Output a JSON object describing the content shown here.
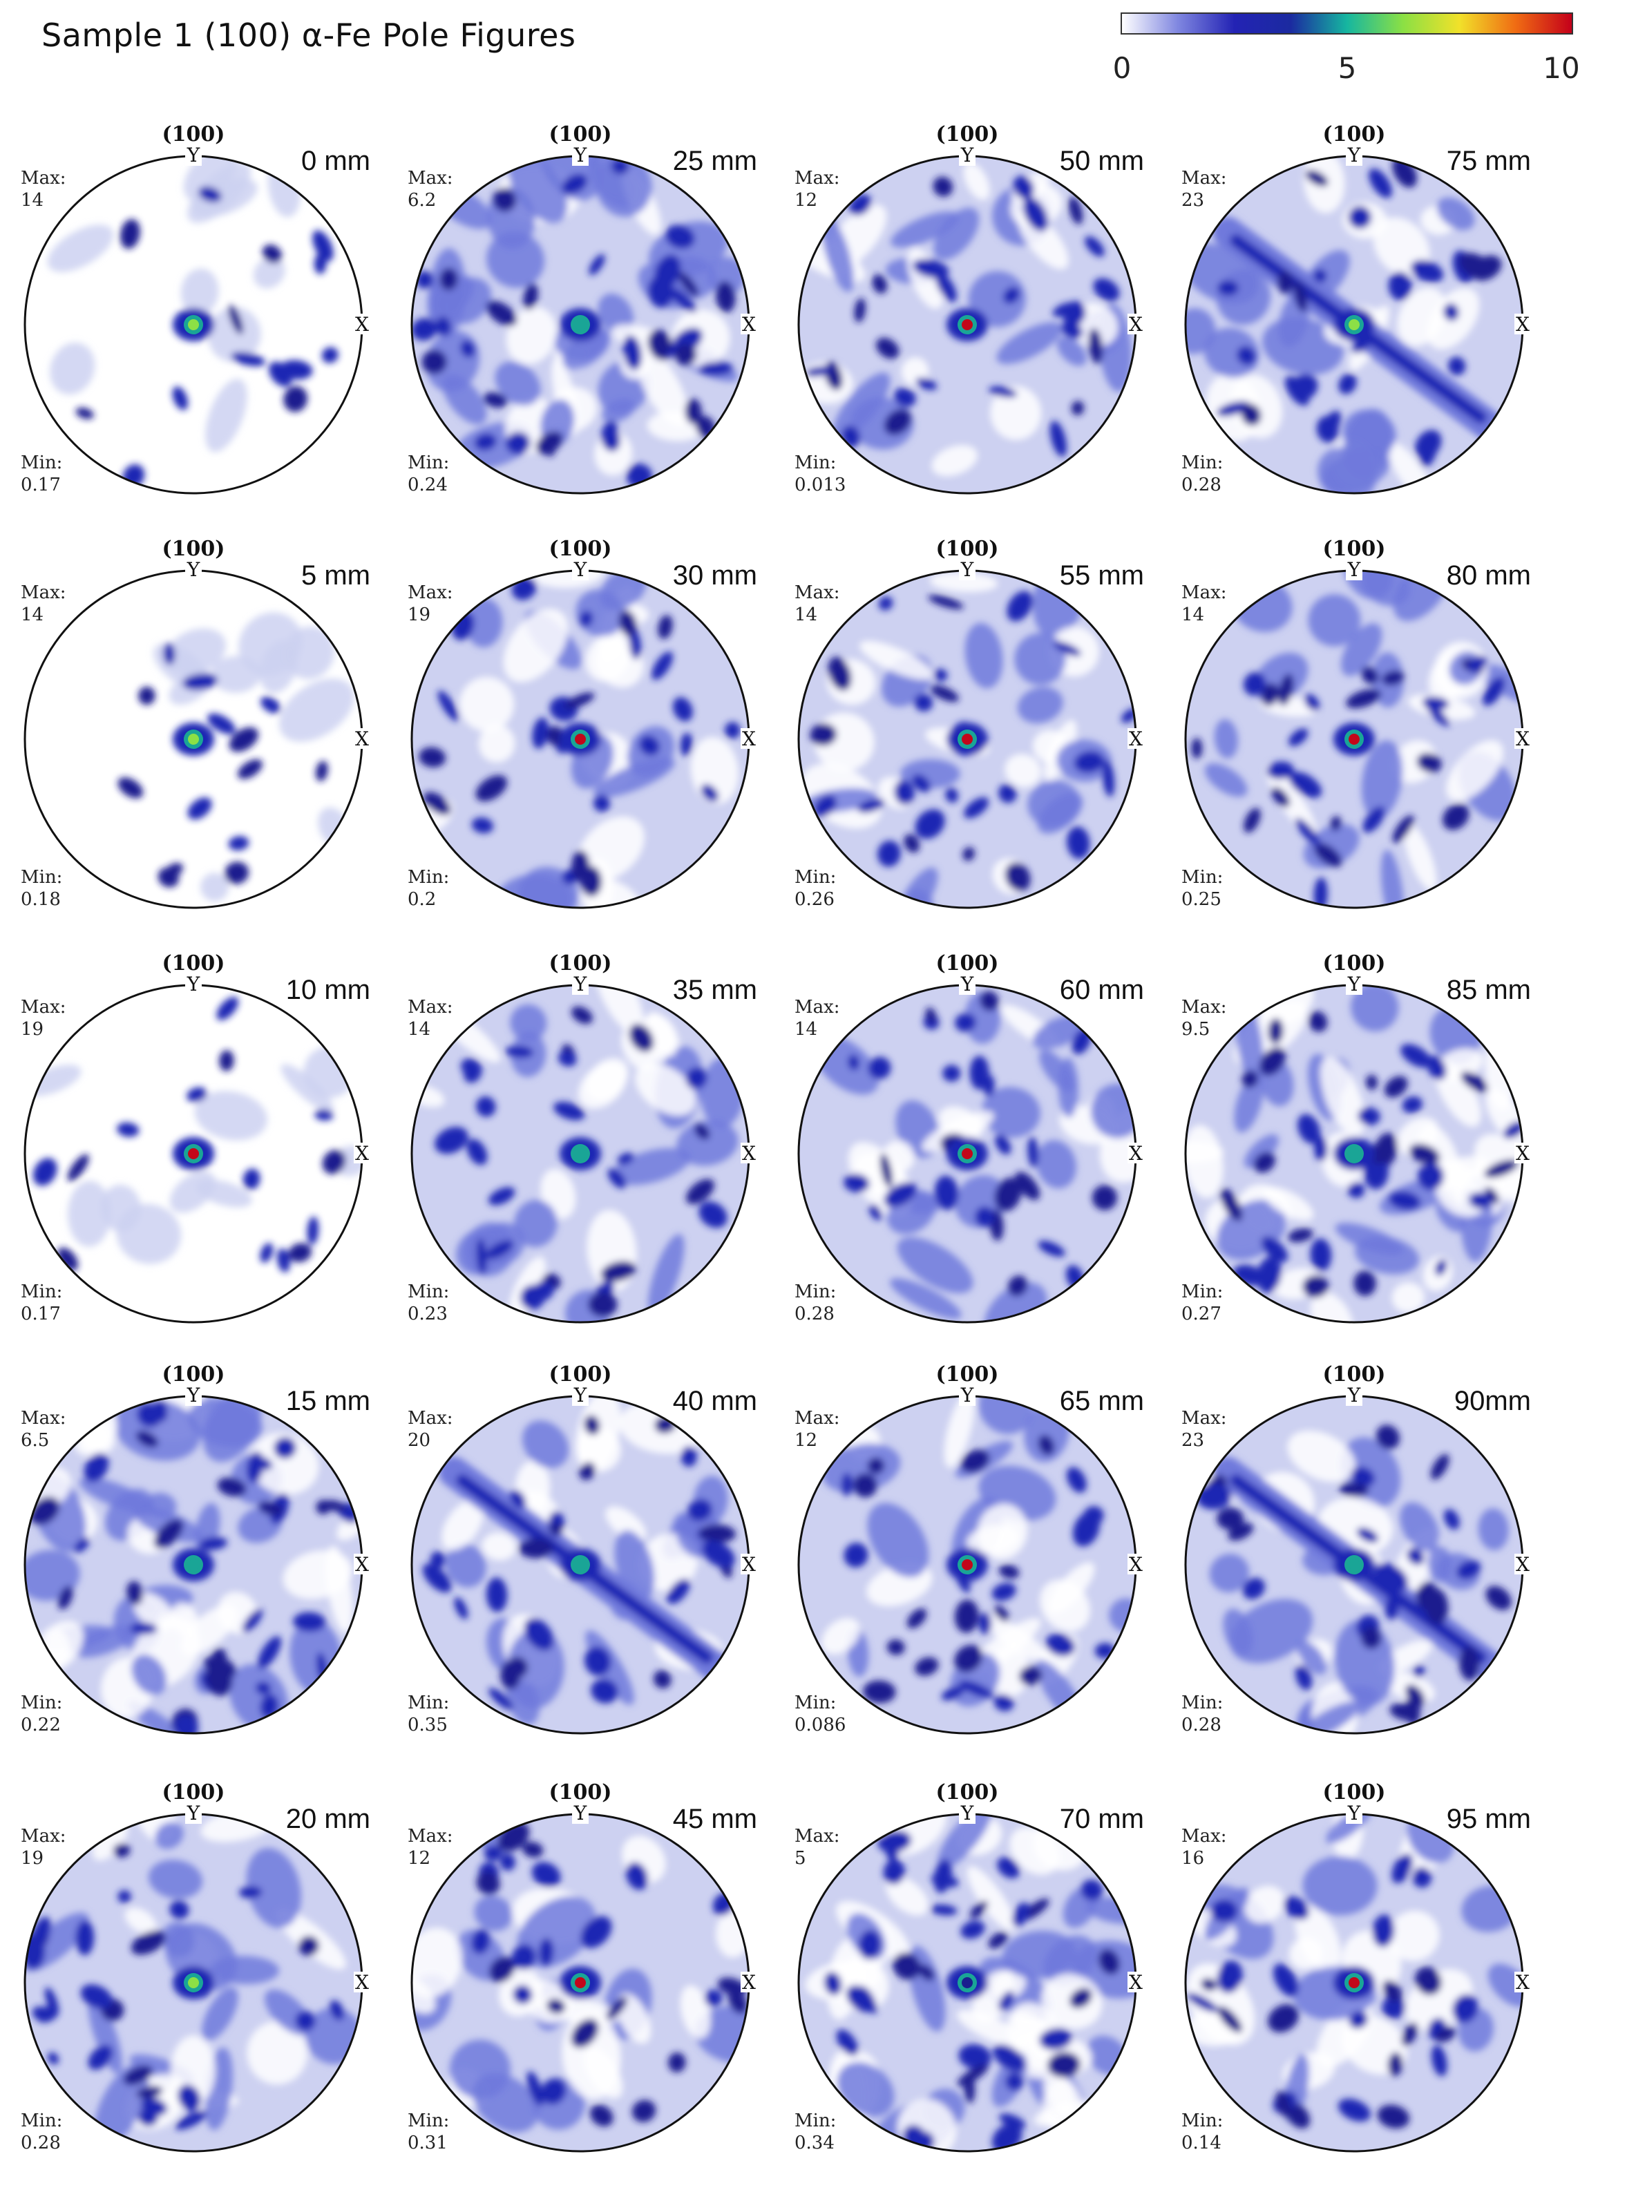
{
  "figure": {
    "title": "Sample 1 (100) α-Fe Pole Figures",
    "colorbar": {
      "ticks": [
        "0",
        "5",
        "10"
      ],
      "colors": [
        "#ffffff",
        "#7f86e0",
        "#2323b4",
        "#1b2aa0",
        "#16b6a0",
        "#8be044",
        "#f1e12a",
        "#f06c13",
        "#c4001a"
      ]
    },
    "labels": {
      "pole": "(100)",
      "y_axis": "Y",
      "x_axis": "X",
      "max_label": "Max:",
      "min_label": "Min:"
    },
    "palette": {
      "white": "#ffffff",
      "light": "#cdd1f1",
      "mid": "#6f79dc",
      "dark": "#1f27b3",
      "navy": "#1a1f8e",
      "teal": "#1aa596",
      "green": "#8ce046",
      "yellow": "#f3e62a",
      "red": "#c3071a"
    },
    "panels": [
      {
        "position": "0 mm",
        "max": "14",
        "min": "0.17",
        "style": "sparse",
        "seed": 11,
        "hotspot": "green"
      },
      {
        "position": "5 mm",
        "max": "14",
        "min": "0.18",
        "style": "sparse",
        "seed": 12,
        "hotspot": "green"
      },
      {
        "position": "10 mm",
        "max": "19",
        "min": "0.17",
        "style": "sparse",
        "seed": 13,
        "hotspot": "red"
      },
      {
        "position": "15 mm",
        "max": "6.5",
        "min": "0.22",
        "style": "dense",
        "seed": 14,
        "hotspot": "teal"
      },
      {
        "position": "20 mm",
        "max": "19",
        "min": "0.28",
        "style": "medium",
        "seed": 15,
        "hotspot": "green"
      },
      {
        "position": "25 mm",
        "max": "6.2",
        "min": "0.24",
        "style": "dense",
        "seed": 21,
        "hotspot": "teal"
      },
      {
        "position": "30 mm",
        "max": "19",
        "min": "0.2",
        "style": "medium",
        "seed": 22,
        "hotspot": "red"
      },
      {
        "position": "35 mm",
        "max": "14",
        "min": "0.23",
        "style": "medium",
        "seed": 23,
        "hotspot": "teal"
      },
      {
        "position": "40 mm",
        "max": "20",
        "min": "0.35",
        "style": "band",
        "seed": 24,
        "hotspot": "teal"
      },
      {
        "position": "45 mm",
        "max": "12",
        "min": "0.31",
        "style": "medium",
        "seed": 25,
        "hotspot": "red"
      },
      {
        "position": "50 mm",
        "max": "12",
        "min": "0.013",
        "style": "medium",
        "seed": 31,
        "hotspot": "red"
      },
      {
        "position": "55 mm",
        "max": "14",
        "min": "0.26",
        "style": "medium",
        "seed": 32,
        "hotspot": "red"
      },
      {
        "position": "60 mm",
        "max": "14",
        "min": "0.28",
        "style": "medium",
        "seed": 33,
        "hotspot": "red"
      },
      {
        "position": "65 mm",
        "max": "12",
        "min": "0.086",
        "style": "medium",
        "seed": 34,
        "hotspot": "red"
      },
      {
        "position": "70 mm",
        "max": "5",
        "min": "0.34",
        "style": "dense",
        "seed": 35,
        "hotspot": "navy"
      },
      {
        "position": "75 mm",
        "max": "23",
        "min": "0.28",
        "style": "band",
        "seed": 41,
        "hotspot": "green"
      },
      {
        "position": "80 mm",
        "max": "14",
        "min": "0.25",
        "style": "medium",
        "seed": 42,
        "hotspot": "red"
      },
      {
        "position": "85 mm",
        "max": "9.5",
        "min": "0.27",
        "style": "dense",
        "seed": 43,
        "hotspot": "teal"
      },
      {
        "position": "90mm",
        "max": "23",
        "min": "0.28",
        "style": "band",
        "seed": 44,
        "hotspot": "teal"
      },
      {
        "position": "95 mm",
        "max": "16",
        "min": "0.14",
        "style": "medium",
        "seed": 45,
        "hotspot": "red"
      }
    ]
  }
}
